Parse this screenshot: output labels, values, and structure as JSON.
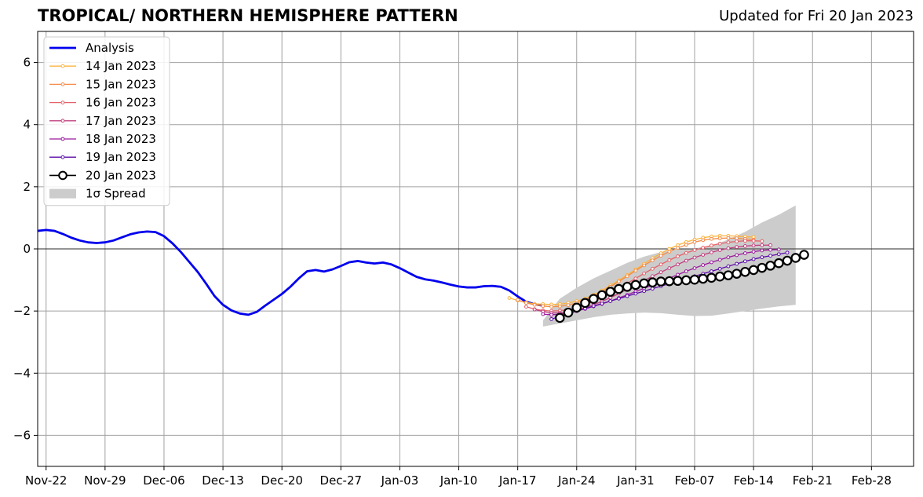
{
  "chart_data": {
    "type": "line",
    "title": "TROPICAL/ NORTHERN HEMISPHERE PATTERN",
    "subtitle": "Updated for Fri 20 Jan 2023",
    "xlabel": "",
    "ylabel": "",
    "x_axis_type": "date",
    "xlim": [
      "2022-11-21",
      "2023-03-05"
    ],
    "ylim": [
      -7,
      7
    ],
    "x_ticks": [
      "2022-11-22",
      "2022-11-29",
      "2022-12-06",
      "2022-12-13",
      "2022-12-20",
      "2022-12-27",
      "2023-01-03",
      "2023-01-10",
      "2023-01-17",
      "2023-01-24",
      "2023-01-31",
      "2023-02-07",
      "2023-02-14",
      "2023-02-21",
      "2023-02-28"
    ],
    "x_tick_labels": [
      "Nov-22",
      "Nov-29",
      "Dec-06",
      "Dec-13",
      "Dec-20",
      "Dec-27",
      "Jan-03",
      "Jan-10",
      "Jan-17",
      "Jan-24",
      "Jan-31",
      "Feb-07",
      "Feb-14",
      "Feb-21",
      "Feb-28"
    ],
    "y_ticks": [
      -6,
      -4,
      -2,
      0,
      2,
      4,
      6
    ],
    "y_tick_labels": [
      "−6",
      "−4",
      "−2",
      "0",
      "2",
      "4",
      "6"
    ],
    "grid": true,
    "legend_position": "top-left",
    "analysis": {
      "name": "Analysis",
      "color": "#0000ee",
      "points": [
        [
          "2022-11-21",
          0.58
        ],
        [
          "2022-11-22",
          0.61
        ],
        [
          "2022-11-23",
          0.58
        ],
        [
          "2022-11-24",
          0.48
        ],
        [
          "2022-11-25",
          0.36
        ],
        [
          "2022-11-26",
          0.27
        ],
        [
          "2022-11-27",
          0.21
        ],
        [
          "2022-11-28",
          0.19
        ],
        [
          "2022-11-29",
          0.21
        ],
        [
          "2022-11-30",
          0.27
        ],
        [
          "2022-12-01",
          0.37
        ],
        [
          "2022-12-02",
          0.47
        ],
        [
          "2022-12-03",
          0.53
        ],
        [
          "2022-12-04",
          0.56
        ],
        [
          "2022-12-05",
          0.54
        ],
        [
          "2022-12-06",
          0.41
        ],
        [
          "2022-12-07",
          0.18
        ],
        [
          "2022-12-08",
          -0.1
        ],
        [
          "2022-12-09",
          -0.42
        ],
        [
          "2022-12-10",
          -0.74
        ],
        [
          "2022-12-11",
          -1.12
        ],
        [
          "2022-12-12",
          -1.52
        ],
        [
          "2022-12-13",
          -1.8
        ],
        [
          "2022-12-14",
          -1.98
        ],
        [
          "2022-12-15",
          -2.08
        ],
        [
          "2022-12-16",
          -2.12
        ],
        [
          "2022-12-17",
          -2.03
        ],
        [
          "2022-12-18",
          -1.83
        ],
        [
          "2022-12-19",
          -1.64
        ],
        [
          "2022-12-20",
          -1.45
        ],
        [
          "2022-12-21",
          -1.22
        ],
        [
          "2022-12-22",
          -0.95
        ],
        [
          "2022-12-23",
          -0.72
        ],
        [
          "2022-12-24",
          -0.68
        ],
        [
          "2022-12-25",
          -0.73
        ],
        [
          "2022-12-26",
          -0.66
        ],
        [
          "2022-12-27",
          -0.55
        ],
        [
          "2022-12-28",
          -0.43
        ],
        [
          "2022-12-29",
          -0.39
        ],
        [
          "2022-12-30",
          -0.44
        ],
        [
          "2022-12-31",
          -0.47
        ],
        [
          "2023-01-01",
          -0.44
        ],
        [
          "2023-01-02",
          -0.5
        ],
        [
          "2023-01-03",
          -0.62
        ],
        [
          "2023-01-04",
          -0.76
        ],
        [
          "2023-01-05",
          -0.9
        ],
        [
          "2023-01-06",
          -0.98
        ],
        [
          "2023-01-07",
          -1.02
        ],
        [
          "2023-01-08",
          -1.08
        ],
        [
          "2023-01-09",
          -1.15
        ],
        [
          "2023-01-10",
          -1.21
        ],
        [
          "2023-01-11",
          -1.24
        ],
        [
          "2023-01-12",
          -1.24
        ],
        [
          "2023-01-13",
          -1.2
        ],
        [
          "2023-01-14",
          -1.19
        ],
        [
          "2023-01-15",
          -1.22
        ],
        [
          "2023-01-16",
          -1.34
        ],
        [
          "2023-01-17",
          -1.53
        ],
        [
          "2023-01-18",
          -1.7
        ],
        [
          "2023-01-19",
          -1.78
        ],
        [
          "2023-01-20",
          -1.83
        ]
      ]
    },
    "spread": {
      "name": "1σ Spread",
      "color": "#cccccc",
      "x": [
        "2023-01-20",
        "2023-01-22",
        "2023-01-24",
        "2023-01-26",
        "2023-01-28",
        "2023-01-30",
        "2023-02-01",
        "2023-02-03",
        "2023-02-05",
        "2023-02-07",
        "2023-02-09",
        "2023-02-11",
        "2023-02-13",
        "2023-02-15",
        "2023-02-17",
        "2023-02-19"
      ],
      "upper": [
        -2.3,
        -1.6,
        -1.25,
        -0.95,
        -0.7,
        -0.45,
        -0.25,
        -0.1,
        -0.02,
        0.02,
        0.1,
        0.3,
        0.55,
        0.85,
        1.1,
        1.4
      ],
      "lower": [
        -2.5,
        -2.4,
        -2.3,
        -2.2,
        -2.12,
        -2.08,
        -2.05,
        -2.07,
        -2.12,
        -2.16,
        -2.15,
        -2.08,
        -2.0,
        -1.92,
        -1.85,
        -1.8
      ]
    },
    "series": [
      {
        "name": "14 Jan 2023",
        "color": "#fbb33f",
        "start": "2023-01-16",
        "values": [
          -1.58,
          -1.66,
          -1.72,
          -1.77,
          -1.78,
          -1.79,
          -1.78,
          -1.74,
          -1.68,
          -1.6,
          -1.48,
          -1.34,
          -1.18,
          -1.01,
          -0.84,
          -0.66,
          -0.48,
          -0.3,
          -0.14,
          0.0,
          0.12,
          0.22,
          0.3,
          0.36,
          0.4,
          0.42,
          0.42,
          0.41,
          0.39,
          0.38
        ]
      },
      {
        "name": "15 Jan 2023",
        "color": "#f48b47",
        "start": "2023-01-17",
        "values": [
          -1.64,
          -1.74,
          -1.8,
          -1.84,
          -1.86,
          -1.85,
          -1.81,
          -1.74,
          -1.64,
          -1.52,
          -1.38,
          -1.22,
          -1.05,
          -0.88,
          -0.7,
          -0.53,
          -0.37,
          -0.22,
          -0.09,
          0.03,
          0.13,
          0.22,
          0.28,
          0.32,
          0.34,
          0.35,
          0.34,
          0.32,
          0.3
        ]
      },
      {
        "name": "16 Jan 2023",
        "color": "#e6626a",
        "start": "2023-01-18",
        "values": [
          -1.86,
          -1.94,
          -1.98,
          -2.0,
          -1.99,
          -1.95,
          -1.89,
          -1.8,
          -1.69,
          -1.56,
          -1.42,
          -1.27,
          -1.11,
          -0.95,
          -0.79,
          -0.64,
          -0.5,
          -0.36,
          -0.24,
          -0.13,
          -0.04,
          0.04,
          0.11,
          0.17,
          0.21,
          0.24,
          0.26,
          0.26,
          0.25
        ]
      },
      {
        "name": "17 Jan 2023",
        "color": "#c2407f",
        "start": "2023-01-19",
        "values": [
          -1.95,
          -2.02,
          -2.06,
          -2.06,
          -2.03,
          -1.97,
          -1.89,
          -1.8,
          -1.69,
          -1.57,
          -1.44,
          -1.3,
          -1.16,
          -1.02,
          -0.88,
          -0.75,
          -0.62,
          -0.5,
          -0.38,
          -0.28,
          -0.19,
          -0.11,
          -0.04,
          0.02,
          0.06,
          0.09,
          0.11,
          0.12,
          0.12
        ]
      },
      {
        "name": "18 Jan 2023",
        "color": "#9b1a9e",
        "start": "2023-01-20",
        "values": [
          -2.1,
          -2.12,
          -2.1,
          -2.06,
          -2.0,
          -1.93,
          -1.85,
          -1.77,
          -1.68,
          -1.58,
          -1.48,
          -1.37,
          -1.27,
          -1.16,
          -1.05,
          -0.94,
          -0.83,
          -0.72,
          -0.62,
          -0.52,
          -0.43,
          -0.35,
          -0.27,
          -0.2,
          -0.14,
          -0.09,
          -0.05,
          -0.03,
          -0.02
        ]
      },
      {
        "name": "19 Jan 2023",
        "color": "#5c0ca8",
        "start": "2023-01-21",
        "values": [
          -2.26,
          -2.18,
          -2.09,
          -2.0,
          -1.92,
          -1.84,
          -1.76,
          -1.68,
          -1.6,
          -1.52,
          -1.44,
          -1.36,
          -1.28,
          -1.2,
          -1.12,
          -1.04,
          -0.96,
          -0.88,
          -0.8,
          -0.72,
          -0.64,
          -0.56,
          -0.48,
          -0.4,
          -0.33,
          -0.27,
          -0.22,
          -0.17,
          -0.12
        ]
      },
      {
        "name": "20 Jan 2023",
        "color": "#000000",
        "marker_fill": "#ffffff",
        "start": "2023-01-22",
        "values": [
          -2.22,
          -2.05,
          -1.89,
          -1.74,
          -1.61,
          -1.49,
          -1.38,
          -1.29,
          -1.22,
          -1.16,
          -1.11,
          -1.08,
          -1.05,
          -1.04,
          -1.03,
          -1.01,
          -0.99,
          -0.96,
          -0.93,
          -0.89,
          -0.85,
          -0.8,
          -0.74,
          -0.68,
          -0.61,
          -0.54,
          -0.46,
          -0.38,
          -0.29,
          -0.19
        ]
      }
    ]
  }
}
